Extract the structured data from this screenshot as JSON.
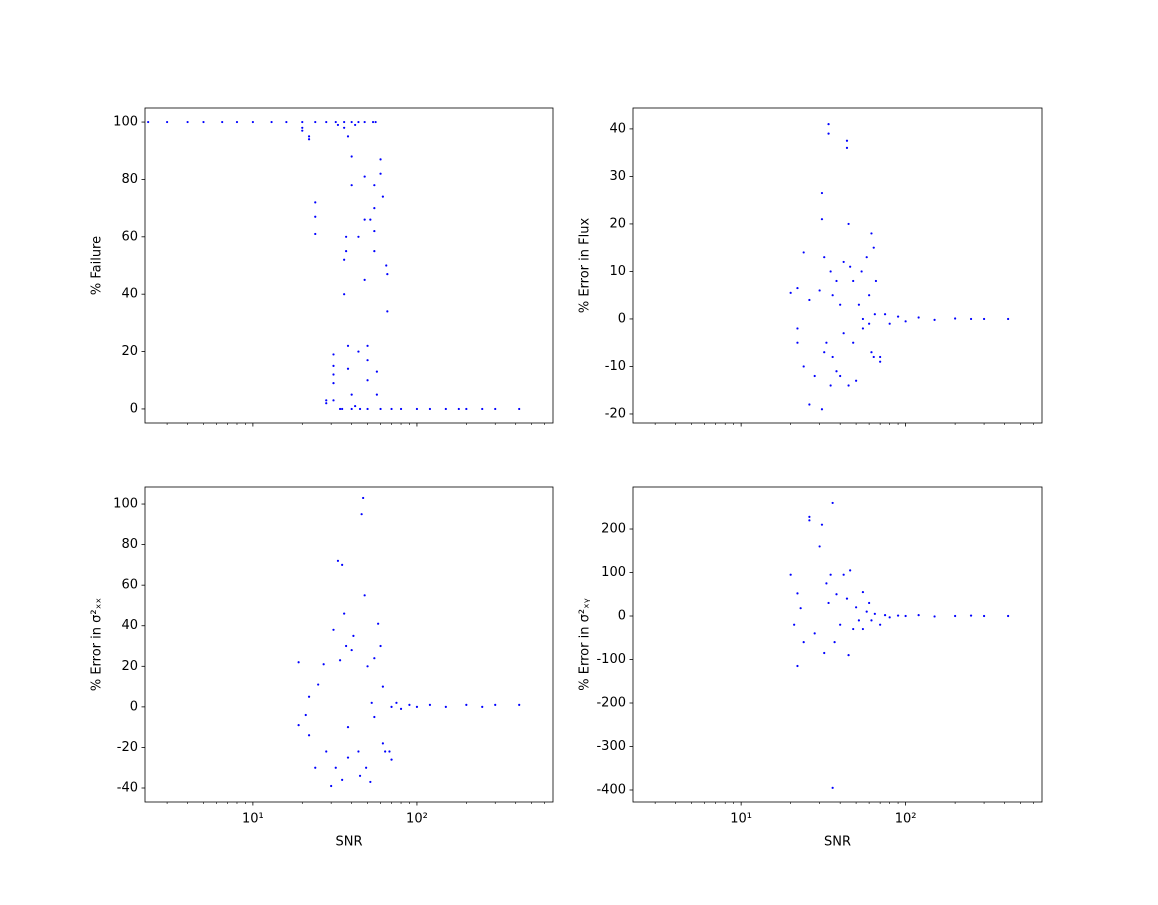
{
  "chart_data": [
    {
      "type": "scatter",
      "ylabel": "% Failure",
      "color": "#0000ff",
      "xscale": "log",
      "xlim": [
        2.2,
        675
      ],
      "xticks": [
        10,
        100
      ],
      "ylim": [
        -4.9,
        104.9
      ],
      "yticks": [
        0,
        20,
        40,
        60,
        80,
        100
      ],
      "x": [
        2.3,
        3,
        4,
        5,
        6.5,
        8,
        10,
        13,
        16,
        20,
        24,
        28,
        32,
        36,
        40,
        44,
        48,
        54,
        56,
        20,
        20,
        22,
        22,
        24,
        24,
        24,
        28,
        28,
        31,
        31,
        31,
        31,
        31,
        33,
        34,
        36,
        36,
        36,
        37,
        37,
        38,
        38,
        38,
        40,
        40,
        40,
        42,
        42,
        44,
        44,
        48,
        48,
        48,
        50,
        50,
        50,
        52,
        55,
        55,
        55,
        55,
        57,
        57,
        60,
        60,
        62,
        65,
        66,
        66,
        35,
        40,
        45,
        50,
        60,
        70,
        80,
        100,
        120,
        150,
        180,
        200,
        250,
        300,
        420
      ],
      "values": [
        100,
        100,
        100,
        100,
        100,
        100,
        100,
        100,
        100,
        100,
        100,
        100,
        100,
        100,
        100,
        100,
        100,
        100,
        100,
        98,
        97,
        94,
        95,
        72,
        67,
        61,
        3,
        2,
        19,
        15,
        12,
        9,
        3,
        99,
        0,
        98,
        52,
        40,
        60,
        55,
        95,
        22,
        14,
        88,
        78,
        5,
        99,
        1,
        60,
        20,
        81,
        66,
        45,
        22,
        17,
        10,
        66,
        78,
        70,
        62,
        55,
        13,
        5,
        87,
        82,
        74,
        50,
        47,
        34,
        0,
        0,
        0,
        0,
        0,
        0,
        0,
        0,
        0,
        0,
        0,
        0,
        0,
        0,
        0
      ]
    },
    {
      "type": "scatter",
      "ylabel": "% Error in Flux",
      "color": "#0000ff",
      "xscale": "log",
      "xlim": [
        2.2,
        675
      ],
      "xticks": [
        10,
        100
      ],
      "ylim": [
        -21.9,
        44.4
      ],
      "yticks": [
        -20,
        -10,
        0,
        10,
        20,
        30,
        40
      ],
      "x": [
        20,
        22,
        22,
        22,
        24,
        24,
        26,
        26,
        28,
        30,
        31,
        31,
        31,
        32,
        32,
        33,
        34,
        34,
        35,
        35,
        36,
        36,
        38,
        38,
        40,
        40,
        42,
        42,
        44,
        44,
        45,
        45,
        46,
        48,
        48,
        50,
        52,
        54,
        55,
        58,
        60,
        62,
        62,
        64,
        64,
        66,
        70,
        70,
        75,
        80,
        90,
        100,
        120,
        150,
        200,
        250,
        300,
        420,
        55,
        60,
        65
      ],
      "values": [
        5.5,
        6.5,
        -2,
        -5,
        14,
        -10,
        -18,
        4,
        -12,
        6,
        26.5,
        21,
        -19,
        -7,
        13,
        -5,
        41,
        39,
        -14,
        10,
        5,
        -8,
        -11,
        8,
        3,
        -12,
        12,
        -3,
        36,
        37.5,
        20,
        -14,
        11,
        -5,
        8,
        -13,
        3,
        10,
        -2,
        13,
        5,
        18,
        -7,
        15,
        -8,
        8,
        -8,
        -9,
        1,
        -1,
        0.5,
        -0.5,
        0.3,
        -0.2,
        0.1,
        0,
        0,
        0,
        0,
        -1,
        1
      ]
    },
    {
      "type": "scatter",
      "ylabel": "% Error in σ²ₓₓ",
      "xlabel": "SNR",
      "color": "#0000ff",
      "xscale": "log",
      "xlim": [
        2.2,
        675
      ],
      "xticks": [
        {
          "value": 10,
          "label": "10¹"
        },
        {
          "value": 100,
          "label": "10²"
        }
      ],
      "ylim": [
        -46.9,
        108.4
      ],
      "yticks": [
        -40,
        -20,
        0,
        20,
        40,
        60,
        80,
        100
      ],
      "x": [
        19,
        19,
        21,
        22,
        22,
        24,
        25,
        27,
        28,
        30,
        31,
        32,
        33,
        34,
        35,
        35,
        36,
        37,
        38,
        38,
        40,
        41,
        44,
        45,
        46,
        47,
        48,
        49,
        50,
        52,
        53,
        55,
        55,
        58,
        60,
        62,
        62,
        64,
        68,
        70,
        70,
        75,
        80,
        90,
        100,
        120,
        150,
        200,
        250,
        300,
        420
      ],
      "values": [
        22,
        -9,
        -4,
        -14,
        5,
        -30,
        11,
        21,
        -22,
        -39,
        38,
        -30,
        72,
        23,
        70,
        -36,
        46,
        30,
        -25,
        -10,
        28,
        35,
        -22,
        -34,
        95,
        103,
        55,
        -30,
        20,
        -37,
        2,
        24,
        -5,
        41,
        30,
        -18,
        10,
        -22,
        -22,
        -26,
        0,
        2,
        -1,
        1,
        0,
        1,
        0,
        1,
        0,
        1,
        1
      ]
    },
    {
      "type": "scatter",
      "ylabel": "% Error in σ²ₓᵧ",
      "xlabel": "SNR",
      "color": "#0000ff",
      "xscale": "log",
      "xlim": [
        2.2,
        675
      ],
      "xticks": [
        {
          "value": 10,
          "label": "10¹"
        },
        {
          "value": 100,
          "label": "10²"
        }
      ],
      "ylim": [
        -427.6,
        296.6
      ],
      "yticks": [
        -400,
        -300,
        -200,
        -100,
        0,
        100,
        200
      ],
      "x": [
        20,
        21,
        22,
        22,
        23,
        24,
        26,
        26,
        28,
        30,
        31,
        32,
        33,
        34,
        35,
        36,
        36,
        37,
        38,
        40,
        42,
        44,
        45,
        46,
        48,
        50,
        52,
        55,
        55,
        58,
        60,
        62,
        65,
        70,
        75,
        80,
        90,
        100,
        120,
        150,
        200,
        250,
        300,
        420
      ],
      "values": [
        95,
        -20,
        52,
        -115,
        18,
        -60,
        228,
        220,
        -40,
        160,
        210,
        -85,
        75,
        30,
        95,
        260,
        -395,
        -60,
        50,
        -20,
        95,
        40,
        -90,
        105,
        -30,
        20,
        -10,
        55,
        -30,
        10,
        30,
        -10,
        5,
        -20,
        2,
        -3,
        1,
        0,
        2,
        -1,
        0,
        1,
        0,
        0
      ]
    }
  ]
}
